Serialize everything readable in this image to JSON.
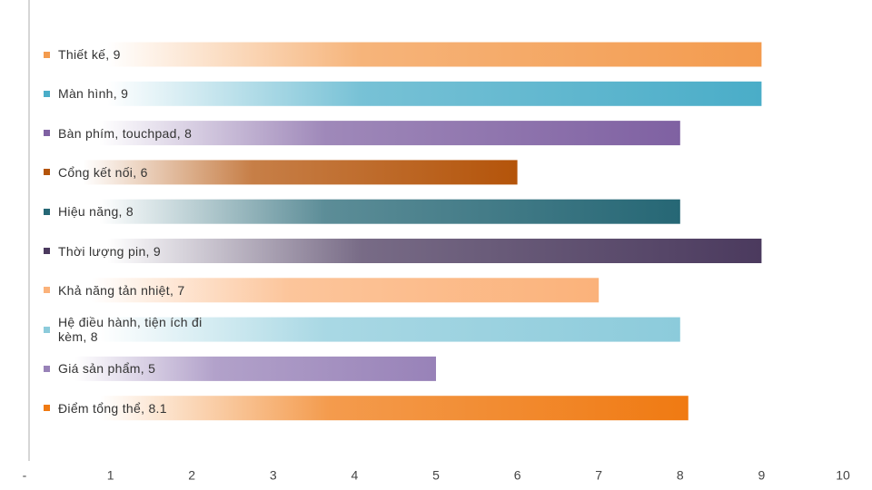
{
  "chart_data": {
    "type": "bar",
    "orientation": "horizontal",
    "categories": [
      "Thiết kế",
      "Màn hình",
      "Bàn phím, touchpad",
      "Cổng kết nối",
      "Hiệu năng",
      "Thời lượng pin",
      "Khả năng tản nhiệt",
      "Hệ điều hành, tiện ích đi kèm",
      "Giá sản phẩm",
      "Điểm tổng thể"
    ],
    "values": [
      9,
      9,
      8,
      6,
      8,
      9,
      7,
      8,
      5,
      8.1
    ],
    "label_separator": ", ",
    "colors": [
      "#f39b4e",
      "#4aadc8",
      "#7f61a2",
      "#b4540a",
      "#266775",
      "#4b3a5e",
      "#fbb27a",
      "#8ccbdb",
      "#9882b8",
      "#f07a12"
    ],
    "xlim": [
      0,
      10
    ],
    "xticks": [
      {
        "value": 0,
        "label": "-"
      },
      1,
      2,
      3,
      4,
      5,
      6,
      7,
      8,
      9,
      10
    ]
  }
}
